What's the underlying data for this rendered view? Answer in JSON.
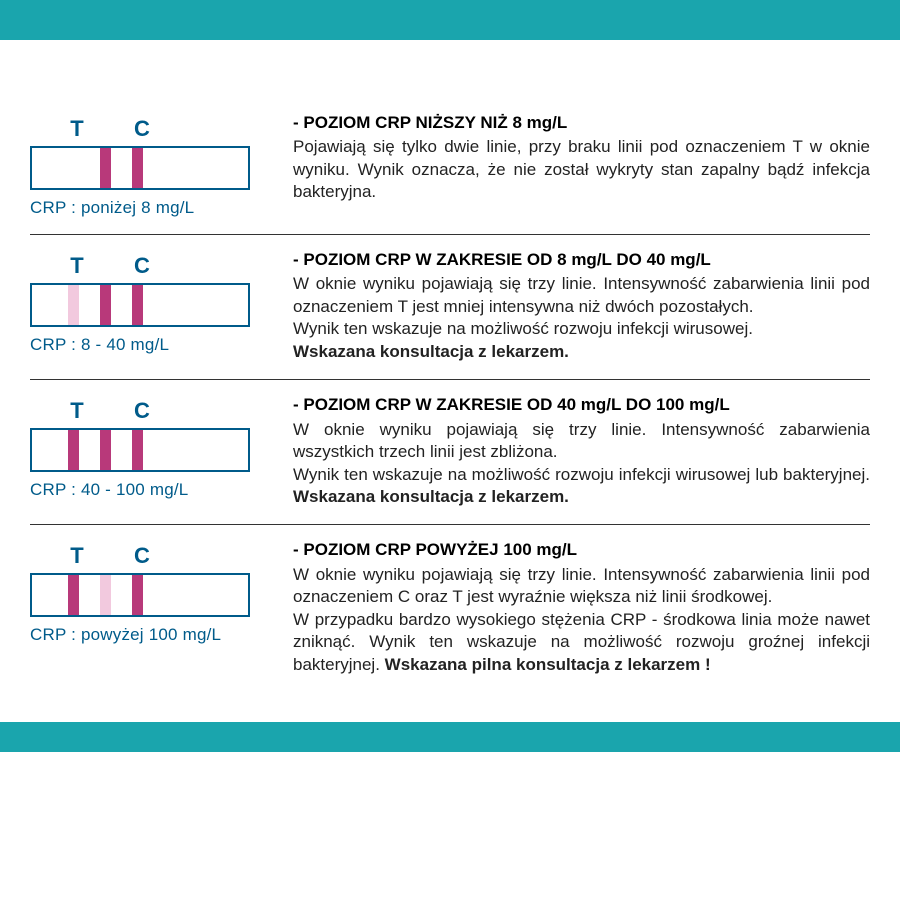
{
  "colors": {
    "band": "#1aa5ad",
    "border": "#005b8a",
    "text_blue": "#005b8a",
    "line_strong": "#b8397a",
    "line_faint": "#f2c9de",
    "line_med": "#e99ec6"
  },
  "labels": {
    "T": "T",
    "C": "C"
  },
  "rows": [
    {
      "caption": "CRP : poniżej 8 mg/L",
      "lines": [
        {
          "color": "transparent"
        },
        {
          "color": "#b8397a"
        },
        {
          "color": "#b8397a"
        }
      ],
      "title": "- POZIOM CRP NIŻSZY NIŻ 8 mg/L",
      "body_html": "Pojawiają się tylko dwie linie, przy braku linii pod oznaczeniem T w oknie wyniku. Wynik oznacza, że nie został wykryty stan zapalny bądź infekcja bakteryjna."
    },
    {
      "caption": "CRP : 8 - 40 mg/L",
      "lines": [
        {
          "color": "#f2c9de"
        },
        {
          "color": "#b8397a"
        },
        {
          "color": "#b8397a"
        }
      ],
      "title": "- POZIOM CRP W ZAKRESIE OD 8 mg/L DO 40 mg/L",
      "body_html": "W oknie wyniku pojawiają się trzy linie. Intensywność zabarwienia linii pod oznaczeniem T jest mniej intensywna niż dwóch pozostałych.<br>Wynik ten wskazuje na możliwość rozwoju infekcji wirusowej.<br><span class=\"bold\">Wskazana konsultacja z lekarzem.</span>"
    },
    {
      "caption": "CRP : 40 - 100 mg/L",
      "lines": [
        {
          "color": "#b8397a"
        },
        {
          "color": "#b8397a"
        },
        {
          "color": "#b8397a"
        }
      ],
      "title": "- POZIOM CRP W ZAKRESIE OD 40 mg/L DO 100 mg/L",
      "body_html": "W oknie wyniku pojawiają się trzy linie. Intensywność zabarwienia wszystkich trzech linii jest zbliżona.<br>Wynik ten wskazuje na możliwość rozwoju infekcji wirusowej lub bakteryjnej. <span class=\"bold\">Wskazana konsultacja z lekarzem.</span>"
    },
    {
      "caption": "CRP : powyżej 100 mg/L",
      "lines": [
        {
          "color": "#b8397a"
        },
        {
          "color": "#f2c9de"
        },
        {
          "color": "#b8397a"
        }
      ],
      "title": "- POZIOM CRP POWYŻEJ 100 mg/L",
      "body_html": "W oknie wyniku pojawiają się trzy linie. Intensywność zabarwienia linii pod oznaczeniem C oraz T jest wyraźnie większa  niż linii środkowej.<br>W przypadku bardzo wysokiego stężenia CRP - środkowa linia może nawet zniknąć. Wynik ten wskazuje na możliwość rozwoju groźnej infekcji bakteryjnej. <span class=\"bold\">Wskazana pilna konsultacja z lekarzem !</span>"
    }
  ]
}
